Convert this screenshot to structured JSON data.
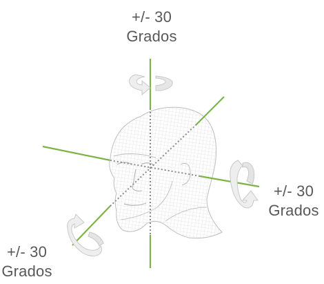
{
  "labels": {
    "top": {
      "line1": "+/- 30",
      "line2": "Grados"
    },
    "right": {
      "line1": "+/- 30",
      "line2": "Grados"
    },
    "left": {
      "line1": "+/- 30",
      "line2": "Grados"
    }
  },
  "colors": {
    "axis": "#7cb342",
    "dotted_axis": "#8a8a8a",
    "mesh": "#c9c9c9",
    "arrow_fill": "#eeeeee",
    "arrow_stroke": "#c8c8c8",
    "text": "#585858"
  },
  "icons": {
    "yaw": "rotation-arrow-vertical-axis-icon",
    "pitch": "rotation-arrow-horizontal-axis-icon",
    "roll": "rotation-arrow-depth-axis-icon",
    "head": "wireframe-head-icon"
  }
}
